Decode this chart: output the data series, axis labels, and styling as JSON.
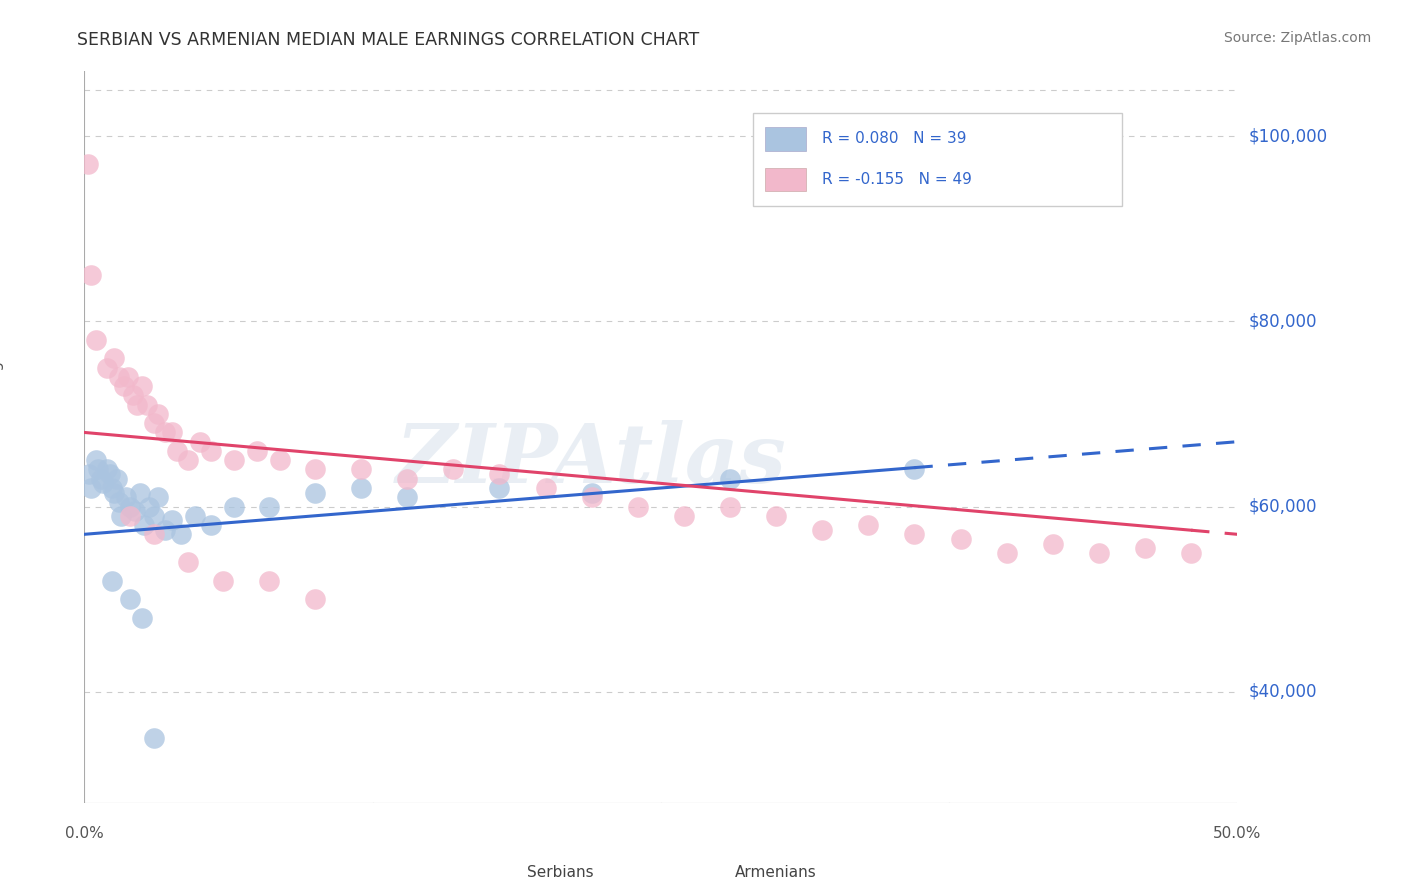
{
  "title": "SERBIAN VS ARMENIAN MEDIAN MALE EARNINGS CORRELATION CHART",
  "source": "Source: ZipAtlas.com",
  "ylabel": "Median Male Earnings",
  "y_ticks": [
    40000,
    60000,
    80000,
    100000
  ],
  "y_tick_labels": [
    "$40,000",
    "$60,000",
    "$80,000",
    "$100,000"
  ],
  "ylim": [
    28000,
    107000
  ],
  "xlim": [
    0.0,
    50.0
  ],
  "serbian_color": "#aac4e0",
  "armenian_color": "#f2b8cb",
  "serbian_line_color": "#3366cc",
  "armenian_line_color": "#e0436a",
  "legend_text_color": "#3366cc",
  "grid_color": "#cccccc",
  "background_color": "#ffffff",
  "serbian_line_x0": 0.0,
  "serbian_line_y0": 57000,
  "serbian_line_x1": 50.0,
  "serbian_line_y1": 67000,
  "serbian_solid_end": 36.0,
  "armenian_line_x0": 0.0,
  "armenian_line_y0": 68000,
  "armenian_line_x1": 50.0,
  "armenian_line_y1": 57000,
  "armenian_solid_end": 48.0,
  "serbian_points": [
    [
      0.2,
      63500
    ],
    [
      0.3,
      62000
    ],
    [
      0.5,
      65000
    ],
    [
      0.6,
      64000
    ],
    [
      0.7,
      63000
    ],
    [
      0.8,
      62500
    ],
    [
      1.0,
      64000
    ],
    [
      1.1,
      63500
    ],
    [
      1.2,
      62000
    ],
    [
      1.3,
      61500
    ],
    [
      1.4,
      63000
    ],
    [
      1.5,
      60500
    ],
    [
      1.6,
      59000
    ],
    [
      1.8,
      61000
    ],
    [
      2.0,
      60000
    ],
    [
      2.2,
      59500
    ],
    [
      2.4,
      61500
    ],
    [
      2.6,
      58000
    ],
    [
      2.8,
      60000
    ],
    [
      3.0,
      59000
    ],
    [
      3.2,
      61000
    ],
    [
      3.5,
      57500
    ],
    [
      3.8,
      58500
    ],
    [
      4.2,
      57000
    ],
    [
      4.8,
      59000
    ],
    [
      5.5,
      58000
    ],
    [
      6.5,
      60000
    ],
    [
      8.0,
      60000
    ],
    [
      10.0,
      61500
    ],
    [
      12.0,
      62000
    ],
    [
      14.0,
      61000
    ],
    [
      18.0,
      62000
    ],
    [
      22.0,
      61500
    ],
    [
      28.0,
      63000
    ],
    [
      36.0,
      64000
    ],
    [
      1.2,
      52000
    ],
    [
      2.0,
      50000
    ],
    [
      2.5,
      48000
    ],
    [
      3.0,
      35000
    ]
  ],
  "armenian_points": [
    [
      0.15,
      97000
    ],
    [
      0.3,
      85000
    ],
    [
      0.5,
      78000
    ],
    [
      1.0,
      75000
    ],
    [
      1.3,
      76000
    ],
    [
      1.5,
      74000
    ],
    [
      1.7,
      73000
    ],
    [
      1.9,
      74000
    ],
    [
      2.1,
      72000
    ],
    [
      2.3,
      71000
    ],
    [
      2.5,
      73000
    ],
    [
      2.7,
      71000
    ],
    [
      3.0,
      69000
    ],
    [
      3.2,
      70000
    ],
    [
      3.5,
      68000
    ],
    [
      3.8,
      68000
    ],
    [
      4.0,
      66000
    ],
    [
      4.5,
      65000
    ],
    [
      5.0,
      67000
    ],
    [
      5.5,
      66000
    ],
    [
      6.5,
      65000
    ],
    [
      7.5,
      66000
    ],
    [
      8.5,
      65000
    ],
    [
      10.0,
      64000
    ],
    [
      12.0,
      64000
    ],
    [
      14.0,
      63000
    ],
    [
      16.0,
      64000
    ],
    [
      18.0,
      63500
    ],
    [
      20.0,
      62000
    ],
    [
      22.0,
      61000
    ],
    [
      24.0,
      60000
    ],
    [
      26.0,
      59000
    ],
    [
      28.0,
      60000
    ],
    [
      30.0,
      59000
    ],
    [
      32.0,
      57500
    ],
    [
      34.0,
      58000
    ],
    [
      36.0,
      57000
    ],
    [
      38.0,
      56500
    ],
    [
      40.0,
      55000
    ],
    [
      42.0,
      56000
    ],
    [
      44.0,
      55000
    ],
    [
      46.0,
      55500
    ],
    [
      48.0,
      55000
    ],
    [
      2.0,
      59000
    ],
    [
      3.0,
      57000
    ],
    [
      4.5,
      54000
    ],
    [
      6.0,
      52000
    ],
    [
      8.0,
      52000
    ],
    [
      10.0,
      50000
    ]
  ],
  "watermark_text": "ZIPAtlas",
  "legend_serbian": "R = 0.080   N = 39",
  "legend_armenian": "R = -0.155   N = 49"
}
